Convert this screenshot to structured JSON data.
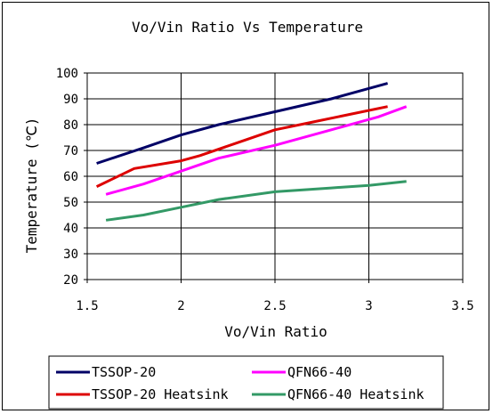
{
  "chart_data": {
    "type": "line",
    "title": "Vo/Vin Ratio Vs Temperature",
    "xlabel": "Vo/Vin Ratio",
    "ylabel": "Temperature (℃)",
    "xlim": [
      1.5,
      3.5
    ],
    "ylim": [
      20,
      100
    ],
    "xticks": [
      "1.5",
      "2",
      "2.5",
      "3",
      "3.5"
    ],
    "yticks": [
      "20",
      "30",
      "40",
      "50",
      "60",
      "70",
      "80",
      "90",
      "100"
    ],
    "grid": true,
    "legend_position": "bottom",
    "series": [
      {
        "name": "TSSOP-20",
        "color": "#000066",
        "x": [
          1.55,
          1.8,
          2.0,
          2.2,
          2.5,
          2.8,
          3.1
        ],
        "y": [
          65,
          71,
          76,
          80,
          85,
          90,
          96
        ]
      },
      {
        "name": "QFN66-40",
        "color": "#ff00ff",
        "x": [
          1.6,
          1.8,
          2.0,
          2.2,
          2.5,
          2.8,
          3.05,
          3.2
        ],
        "y": [
          53,
          57,
          62,
          67,
          72,
          78,
          83,
          87
        ]
      },
      {
        "name": "TSSOP-20 Heatsink",
        "color": "#dd0000",
        "x": [
          1.55,
          1.75,
          2.0,
          2.1,
          2.3,
          2.5,
          2.7,
          2.9,
          3.1
        ],
        "y": [
          56,
          63,
          66,
          68,
          73,
          78,
          81,
          84,
          87
        ]
      },
      {
        "name": "QFN66-40 Heatsink",
        "color": "#339966",
        "x": [
          1.6,
          1.8,
          2.0,
          2.2,
          2.5,
          2.8,
          3.0,
          3.2
        ],
        "y": [
          43,
          45,
          48,
          51,
          54,
          55.5,
          56.5,
          58
        ]
      }
    ]
  }
}
